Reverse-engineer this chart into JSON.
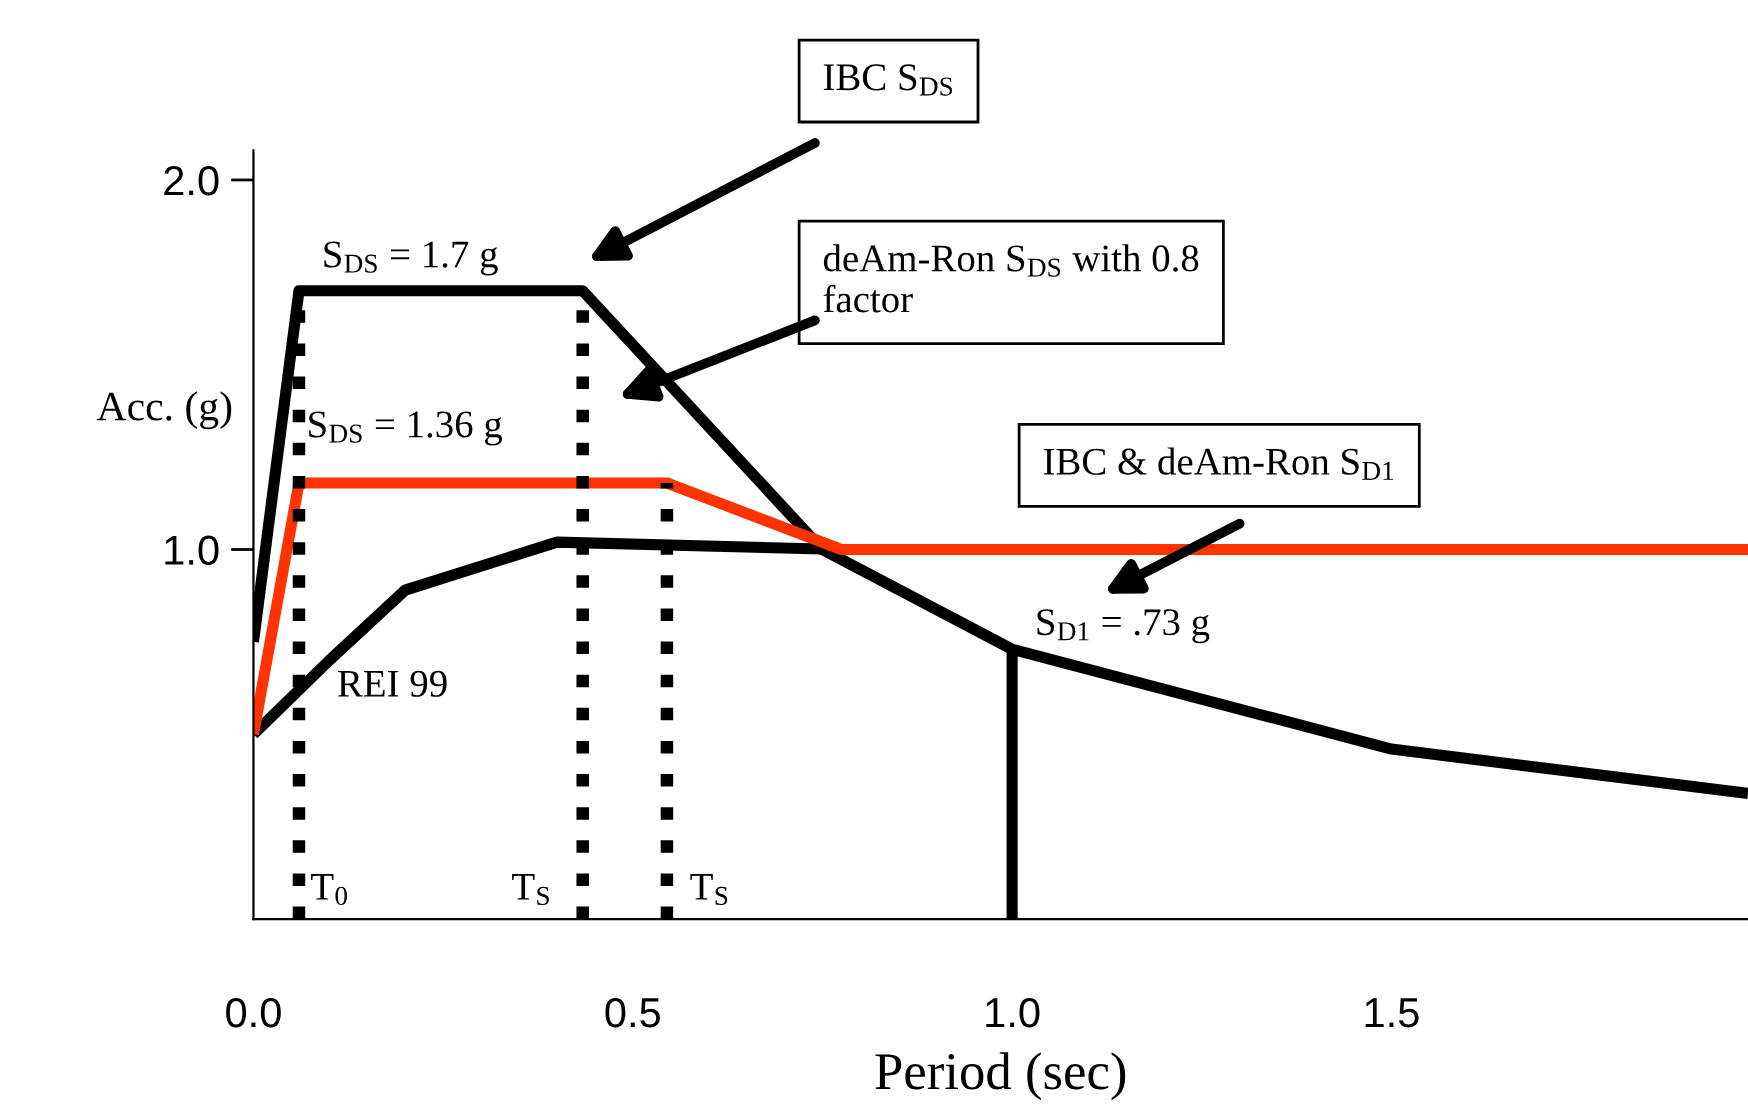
{
  "chart_data": {
    "type": "line",
    "xlabel": "Period (sec)",
    "ylabel": "Acc. (g)",
    "xlim": [
      0,
      1.97
    ],
    "ylim": [
      0,
      2.08
    ],
    "xticks": [
      {
        "value": 0,
        "label": "0.0"
      },
      {
        "value": 0.5,
        "label": "0.5"
      },
      {
        "value": 1.0,
        "label": "1.0"
      },
      {
        "value": 1.5,
        "label": "1.5"
      }
    ],
    "yticks": [
      {
        "value": 1.0,
        "label": "1.0"
      },
      {
        "value": 2.0,
        "label": "2.0"
      }
    ],
    "grid": false,
    "marker": "none",
    "series": [
      {
        "color": "#000000",
        "x": [
          0,
          0.06,
          0.434,
          0.75,
          1.0,
          1.5,
          1.97
        ],
        "values": [
          0.75,
          1.7,
          1.7,
          1.0,
          0.73,
          0.46,
          0.34
        ]
      },
      {
        "color": "#000000",
        "x": [
          0,
          0.1,
          0.2,
          0.4,
          0.775
        ],
        "values": [
          0.5,
          0.7,
          0.89,
          1.02,
          1.0
        ]
      },
      {
        "color": "#ff3300",
        "x": [
          0,
          0.06,
          0.545,
          0.775,
          1.97
        ],
        "values": [
          0.5,
          1.18,
          1.18,
          1.0,
          1.0
        ]
      },
      {
        "color": "#000000",
        "line_style": "dotted",
        "x": [
          0.06,
          0.06
        ],
        "values": [
          0,
          1.7
        ]
      },
      {
        "color": "#000000",
        "line_style": "dotted",
        "x": [
          0.434,
          0.434
        ],
        "values": [
          0,
          1.7
        ]
      },
      {
        "color": "#000000",
        "line_style": "dotted",
        "x": [
          0.545,
          0.545
        ],
        "values": [
          0,
          1.18
        ]
      },
      {
        "color": "#000000",
        "x": [
          1.0,
          1.0
        ],
        "values": [
          0,
          0.73
        ]
      }
    ],
    "annotations": [
      "IBC S$_{DS}$",
      "deAm-Ron S$_{DS}$ with 0.8\nfactor",
      "IBC & deAm-Ron S$_{D1}$",
      "S$_{DS}$ = 1.7 g",
      "S$_{DS}$ = 1.36 g",
      "S$_{D1}$ = .73 g",
      "REI 99",
      "T$_{0}$",
      "T$_{S}$",
      "T$_{S}$"
    ]
  }
}
